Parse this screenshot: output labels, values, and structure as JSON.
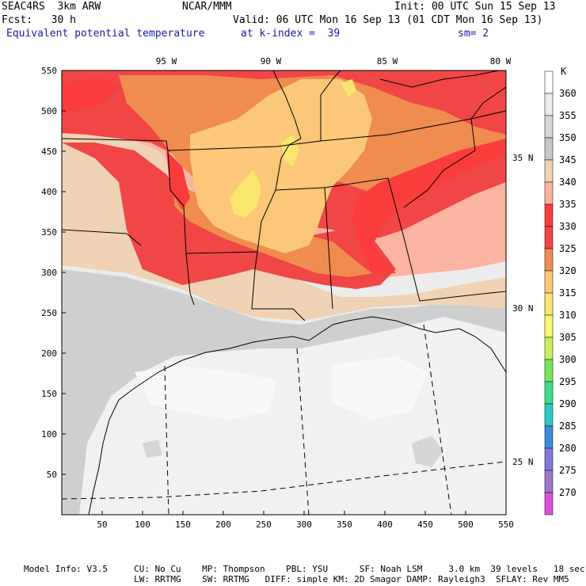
{
  "header": {
    "title": "SEAC4RS  3km ARW",
    "center": "NCAR/MMM",
    "init": "Init: 00 UTC Sun 15 Sep 13",
    "fcst": "Fcst:   30 h",
    "valid": "Valid: 06 UTC Mon 16 Sep 13 (01 CDT Mon 16 Sep 13)",
    "field": "Equivalent potential temperature",
    "level": "at k-index =  39",
    "smooth": "sm= 2"
  },
  "map": {
    "lon_labels": [
      "95 W",
      "90 W",
      "85 W",
      "80 W"
    ],
    "lat_labels": [
      "35 N",
      "30 N",
      "25 N"
    ],
    "x_ticks": [
      "50",
      "100",
      "150",
      "200",
      "250",
      "300",
      "350",
      "400",
      "450",
      "500",
      "550"
    ],
    "y_ticks": [
      "50",
      "100",
      "150",
      "200",
      "250",
      "300",
      "350",
      "400",
      "450",
      "500",
      "550"
    ],
    "grid_range": [
      0,
      550
    ]
  },
  "colorbar": {
    "unit": "K",
    "levels": [
      {
        "label": "360",
        "color": "#ffffff"
      },
      {
        "label": "355",
        "color": "#ececec"
      },
      {
        "label": "350",
        "color": "#d6d6d6"
      },
      {
        "label": "345",
        "color": "#c8c8c8"
      },
      {
        "label": "340",
        "color": "#f0d2b4"
      },
      {
        "label": "335",
        "color": "#fab4a0"
      },
      {
        "label": "330",
        "color": "#fa3c3c"
      },
      {
        "label": "325",
        "color": "#f04646"
      },
      {
        "label": "320",
        "color": "#f08c50"
      },
      {
        "label": "315",
        "color": "#fac878"
      },
      {
        "label": "310",
        "color": "#fae66e"
      },
      {
        "label": "305",
        "color": "#fafa6e"
      },
      {
        "label": "300",
        "color": "#c8f05a"
      },
      {
        "label": "295",
        "color": "#78e65a"
      },
      {
        "label": "290",
        "color": "#3cdc8c"
      },
      {
        "label": "285",
        "color": "#28c8c8"
      },
      {
        "label": "280",
        "color": "#3c8cdc"
      },
      {
        "label": "275",
        "color": "#8278dc"
      },
      {
        "label": "270",
        "color": "#a078c8"
      },
      {
        "label": "",
        "color": "#dc50dc"
      }
    ]
  },
  "footer": {
    "line1": "Model Info: V3.5     CU: No Cu    MP: Thompson    PBL: YSU      SF: Noah LSM     3.0 km  39 levels   18 sec",
    "line2": "                     LW: RRTMG    SW: RRTMG   DIFF: simple KM: 2D Smagor DAMP: Rayleigh3  SFLAY: Rev MM5"
  }
}
